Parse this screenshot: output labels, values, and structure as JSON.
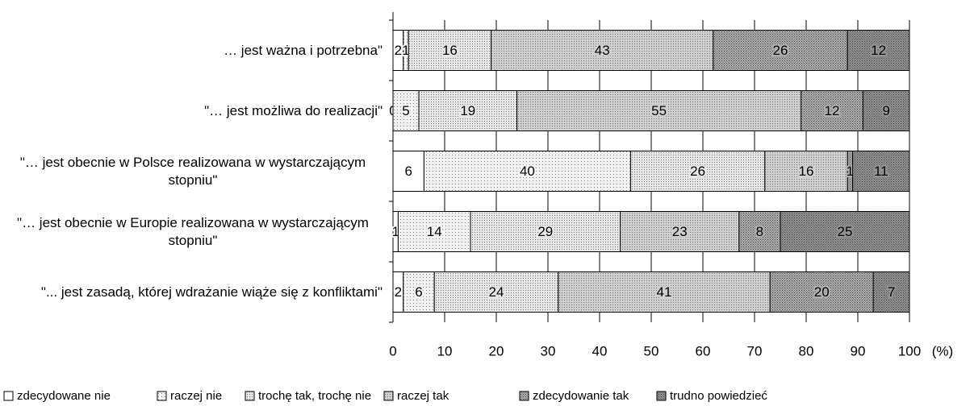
{
  "chart_data": {
    "type": "stacked-barh",
    "categories": [
      "… jest ważna i potrzebna\"",
      "\"… jest możliwa do realizacji\"",
      "\"… jest obecnie w Polsce realizowana w wystarczającym stopniu\"",
      "\"… jest obecnie w Europie realizowana w wystarczającym stopniu\"",
      "\"... jest zasadą, której wdrażanie wiąże się z konfliktami\""
    ],
    "series": [
      {
        "name": "zdecydowane nie",
        "color": "#ffffff",
        "values": [
          2,
          0,
          6,
          1,
          2
        ]
      },
      {
        "name": "raczej nie",
        "color": "#f4f4f4",
        "values": [
          1,
          5,
          40,
          14,
          6
        ]
      },
      {
        "name": "trochę tak, trochę nie",
        "color": "#e6e6e6",
        "values": [
          16,
          19,
          26,
          29,
          24
        ]
      },
      {
        "name": "raczej tak",
        "color": "#cfcfcf",
        "values": [
          43,
          55,
          16,
          23,
          41
        ]
      },
      {
        "name": "zdecydowanie tak",
        "color": "#b0b0b0",
        "values": [
          26,
          12,
          1,
          8,
          20
        ]
      },
      {
        "name": "trudno powiedzieć",
        "color": "#939393",
        "values": [
          12,
          9,
          11,
          25,
          7
        ]
      }
    ],
    "xlabel": "(%)",
    "xlim": [
      0,
      100
    ],
    "xticks": [
      0,
      10,
      20,
      30,
      40,
      50,
      60,
      70,
      80,
      90,
      100
    ],
    "grid": true
  }
}
